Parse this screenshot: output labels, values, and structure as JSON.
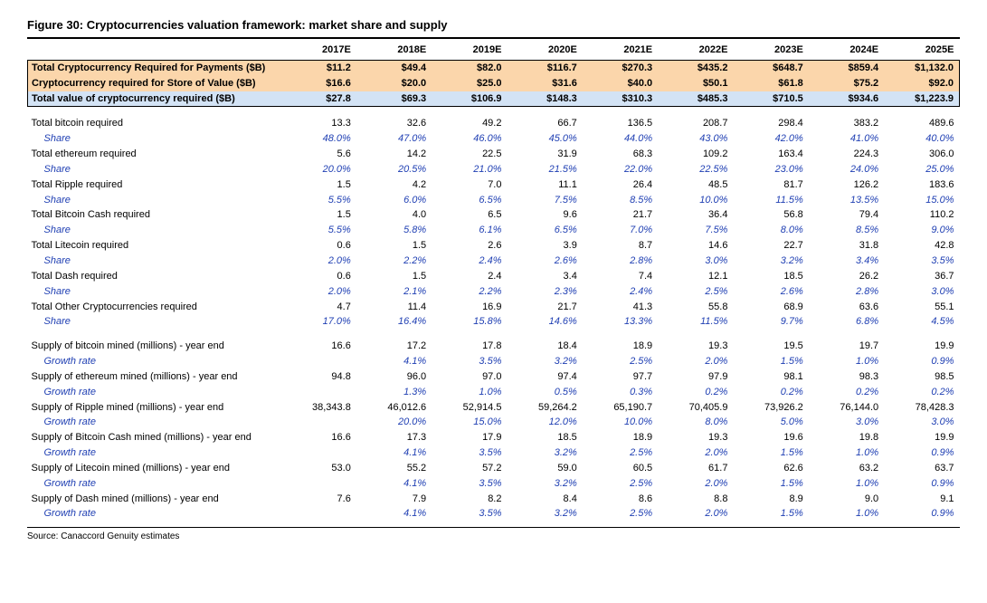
{
  "title": "Figure 30: Cryptocurrencies valuation framework: market share and supply",
  "source": "Source: Canaccord Genuity estimates",
  "years": [
    "2017E",
    "2018E",
    "2019E",
    "2020E",
    "2021E",
    "2022E",
    "2023E",
    "2024E",
    "2025E"
  ],
  "colors": {
    "highlight_orange": "#fbd6ab",
    "highlight_blue": "#d3e3f5",
    "share_text": "#1f3fb3",
    "text": "#000000",
    "background": "#ffffff"
  },
  "header_rows": [
    {
      "label": "Total Cryptocurrency Required for Payments ($B)",
      "vals": [
        "$11.2",
        "$49.4",
        "$82.0",
        "$116.7",
        "$270.3",
        "$435.2",
        "$648.7",
        "$859.4",
        "$1,132.0"
      ],
      "style": "orange"
    },
    {
      "label": "Cryptocurrency required for Store of Value ($B)",
      "vals": [
        "$16.6",
        "$20.0",
        "$25.0",
        "$31.6",
        "$40.0",
        "$50.1",
        "$61.8",
        "$75.2",
        "$92.0"
      ],
      "style": "orange"
    },
    {
      "label": "Total value of cryptocurrency required ($B)",
      "vals": [
        "$27.8",
        "$69.3",
        "$106.9",
        "$148.3",
        "$310.3",
        "$485.3",
        "$710.5",
        "$934.6",
        "$1,223.9"
      ],
      "style": "blue"
    }
  ],
  "required": [
    {
      "label": "Total bitcoin required",
      "vals": [
        "13.3",
        "32.6",
        "49.2",
        "66.7",
        "136.5",
        "208.7",
        "298.4",
        "383.2",
        "489.6"
      ],
      "share": [
        "48.0%",
        "47.0%",
        "46.0%",
        "45.0%",
        "44.0%",
        "43.0%",
        "42.0%",
        "41.0%",
        "40.0%"
      ]
    },
    {
      "label": "Total ethereum required",
      "vals": [
        "5.6",
        "14.2",
        "22.5",
        "31.9",
        "68.3",
        "109.2",
        "163.4",
        "224.3",
        "306.0"
      ],
      "share": [
        "20.0%",
        "20.5%",
        "21.0%",
        "21.5%",
        "22.0%",
        "22.5%",
        "23.0%",
        "24.0%",
        "25.0%"
      ]
    },
    {
      "label": "Total Ripple required",
      "vals": [
        "1.5",
        "4.2",
        "7.0",
        "11.1",
        "26.4",
        "48.5",
        "81.7",
        "126.2",
        "183.6"
      ],
      "share": [
        "5.5%",
        "6.0%",
        "6.5%",
        "7.5%",
        "8.5%",
        "10.0%",
        "11.5%",
        "13.5%",
        "15.0%"
      ]
    },
    {
      "label": "Total Bitcoin Cash required",
      "vals": [
        "1.5",
        "4.0",
        "6.5",
        "9.6",
        "21.7",
        "36.4",
        "56.8",
        "79.4",
        "110.2"
      ],
      "share": [
        "5.5%",
        "5.8%",
        "6.1%",
        "6.5%",
        "7.0%",
        "7.5%",
        "8.0%",
        "8.5%",
        "9.0%"
      ]
    },
    {
      "label": "Total Litecoin required",
      "vals": [
        "0.6",
        "1.5",
        "2.6",
        "3.9",
        "8.7",
        "14.6",
        "22.7",
        "31.8",
        "42.8"
      ],
      "share": [
        "2.0%",
        "2.2%",
        "2.4%",
        "2.6%",
        "2.8%",
        "3.0%",
        "3.2%",
        "3.4%",
        "3.5%"
      ]
    },
    {
      "label": "Total Dash required",
      "vals": [
        "0.6",
        "1.5",
        "2.4",
        "3.4",
        "7.4",
        "12.1",
        "18.5",
        "26.2",
        "36.7"
      ],
      "share": [
        "2.0%",
        "2.1%",
        "2.2%",
        "2.3%",
        "2.4%",
        "2.5%",
        "2.6%",
        "2.8%",
        "3.0%"
      ]
    },
    {
      "label": "Total Other Cryptocurrencies required",
      "vals": [
        "4.7",
        "11.4",
        "16.9",
        "21.7",
        "41.3",
        "55.8",
        "68.9",
        "63.6",
        "55.1"
      ],
      "share": [
        "17.0%",
        "16.4%",
        "15.8%",
        "14.6%",
        "13.3%",
        "11.5%",
        "9.7%",
        "6.8%",
        "4.5%"
      ]
    }
  ],
  "share_label": "Share",
  "growth_label": "Growth rate",
  "supply": [
    {
      "label": "Supply of bitcoin mined (millions) - year end",
      "vals": [
        "16.6",
        "17.2",
        "17.8",
        "18.4",
        "18.9",
        "19.3",
        "19.5",
        "19.7",
        "19.9"
      ],
      "growth": [
        "",
        "4.1%",
        "3.5%",
        "3.2%",
        "2.5%",
        "2.0%",
        "1.5%",
        "1.0%",
        "0.9%"
      ]
    },
    {
      "label": "Supply of ethereum mined (millions) - year end",
      "vals": [
        "94.8",
        "96.0",
        "97.0",
        "97.4",
        "97.7",
        "97.9",
        "98.1",
        "98.3",
        "98.5"
      ],
      "growth": [
        "",
        "1.3%",
        "1.0%",
        "0.5%",
        "0.3%",
        "0.2%",
        "0.2%",
        "0.2%",
        "0.2%"
      ]
    },
    {
      "label": "Supply of Ripple mined (millions) - year end",
      "vals": [
        "38,343.8",
        "46,012.6",
        "52,914.5",
        "59,264.2",
        "65,190.7",
        "70,405.9",
        "73,926.2",
        "76,144.0",
        "78,428.3"
      ],
      "growth": [
        "",
        "20.0%",
        "15.0%",
        "12.0%",
        "10.0%",
        "8.0%",
        "5.0%",
        "3.0%",
        "3.0%"
      ]
    },
    {
      "label": "Supply of Bitcoin Cash mined (millions) - year end",
      "vals": [
        "16.6",
        "17.3",
        "17.9",
        "18.5",
        "18.9",
        "19.3",
        "19.6",
        "19.8",
        "19.9"
      ],
      "growth": [
        "",
        "4.1%",
        "3.5%",
        "3.2%",
        "2.5%",
        "2.0%",
        "1.5%",
        "1.0%",
        "0.9%"
      ]
    },
    {
      "label": "Supply of Litecoin mined (millions) - year end",
      "vals": [
        "53.0",
        "55.2",
        "57.2",
        "59.0",
        "60.5",
        "61.7",
        "62.6",
        "63.2",
        "63.7"
      ],
      "growth": [
        "",
        "4.1%",
        "3.5%",
        "3.2%",
        "2.5%",
        "2.0%",
        "1.5%",
        "1.0%",
        "0.9%"
      ]
    },
    {
      "label": "Supply of Dash mined (millions) - year end",
      "vals": [
        "7.6",
        "7.9",
        "8.2",
        "8.4",
        "8.6",
        "8.8",
        "8.9",
        "9.0",
        "9.1"
      ],
      "growth": [
        "",
        "4.1%",
        "3.5%",
        "3.2%",
        "2.5%",
        "2.0%",
        "1.5%",
        "1.0%",
        "0.9%"
      ]
    }
  ]
}
